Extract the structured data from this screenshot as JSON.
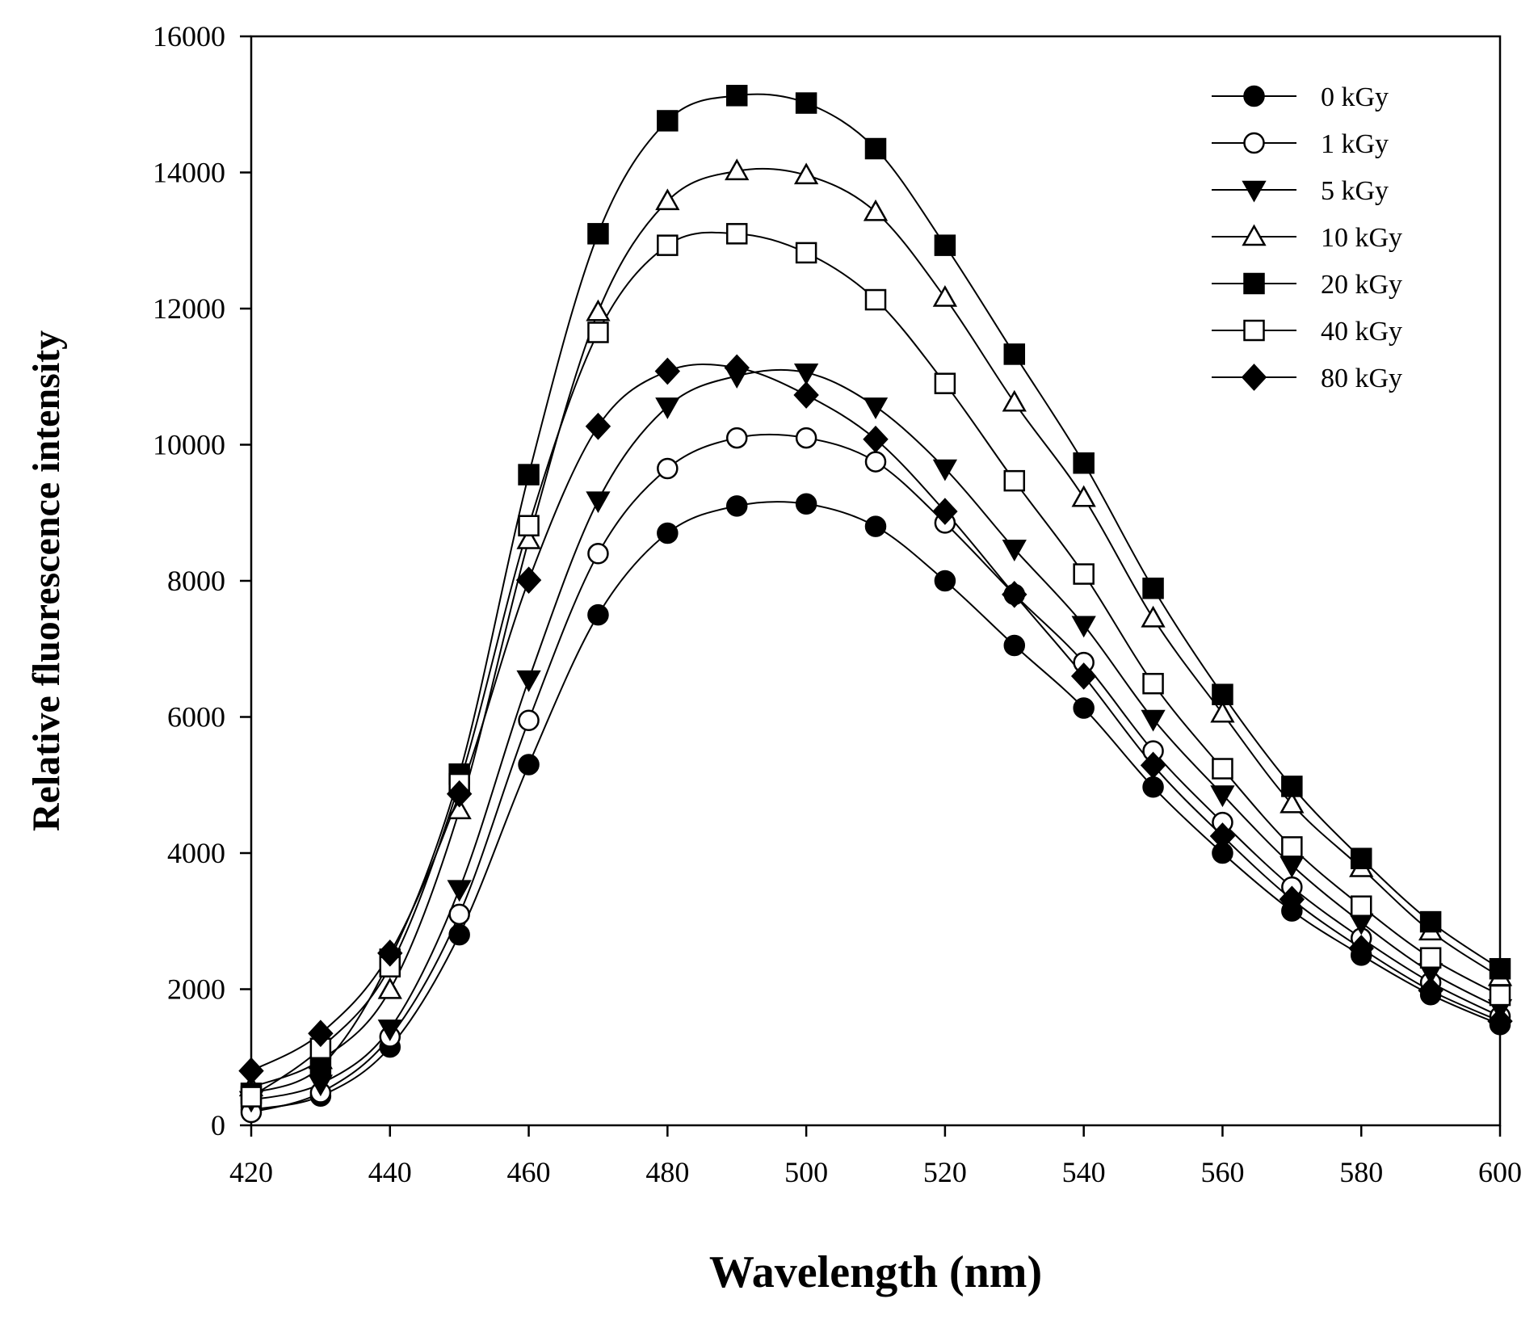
{
  "chart_data": {
    "type": "line",
    "title": "",
    "xlabel": "Wavelength (nm)",
    "ylabel": "Relative fluorescence intensity",
    "xlim": [
      420,
      600
    ],
    "ylim": [
      0,
      16000
    ],
    "xticks": [
      420,
      440,
      460,
      480,
      500,
      520,
      540,
      560,
      580,
      600
    ],
    "yticks": [
      0,
      2000,
      4000,
      6000,
      8000,
      10000,
      12000,
      14000,
      16000
    ],
    "grid": false,
    "legend_position": "top-right",
    "x": [
      420,
      430,
      440,
      450,
      460,
      470,
      480,
      490,
      500,
      510,
      520,
      530,
      540,
      550,
      560,
      570,
      580,
      590,
      600
    ],
    "series": [
      {
        "name": "0 kGy",
        "marker": "circle-filled",
        "values": [
          230,
          430,
          1150,
          2800,
          5300,
          7500,
          8700,
          9100,
          9130,
          8800,
          8000,
          7050,
          6130,
          4970,
          4000,
          3150,
          2500,
          1920,
          1480
        ]
      },
      {
        "name": "1 kGy",
        "marker": "circle-open",
        "values": [
          190,
          480,
          1300,
          3100,
          5950,
          8400,
          9650,
          10100,
          10100,
          9750,
          8850,
          7800,
          6800,
          5500,
          4450,
          3500,
          2750,
          2100,
          1600
        ]
      },
      {
        "name": "5 kGy",
        "marker": "triangle-down-filled",
        "values": [
          370,
          610,
          1420,
          3470,
          6550,
          9180,
          10560,
          11010,
          11060,
          10560,
          9650,
          8470,
          7350,
          5970,
          4860,
          3820,
          2980,
          2250,
          1720
        ]
      },
      {
        "name": "10 kGy",
        "marker": "triangle-up-open",
        "values": [
          560,
          960,
          1990,
          4630,
          8600,
          11950,
          13580,
          14020,
          13960,
          13420,
          12160,
          10620,
          9220,
          7450,
          6050,
          4720,
          3780,
          2850,
          2180
        ]
      },
      {
        "name": "20 kGy",
        "marker": "square-filled",
        "values": [
          470,
          860,
          2440,
          5160,
          9560,
          13100,
          14760,
          15130,
          15020,
          14350,
          12930,
          11330,
          9730,
          7890,
          6330,
          4980,
          3920,
          2990,
          2300
        ]
      },
      {
        "name": "40 kGy",
        "marker": "square-open",
        "values": [
          420,
          1130,
          2330,
          5020,
          8810,
          11650,
          12930,
          13100,
          12820,
          12130,
          10900,
          9470,
          8100,
          6490,
          5240,
          4090,
          3220,
          2460,
          1910
        ]
      },
      {
        "name": "80 kGy",
        "marker": "diamond-filled",
        "values": [
          800,
          1350,
          2530,
          4870,
          8010,
          10270,
          11080,
          11130,
          10730,
          10080,
          9020,
          7800,
          6600,
          5290,
          4250,
          3320,
          2600,
          1980,
          1530
        ]
      }
    ]
  }
}
